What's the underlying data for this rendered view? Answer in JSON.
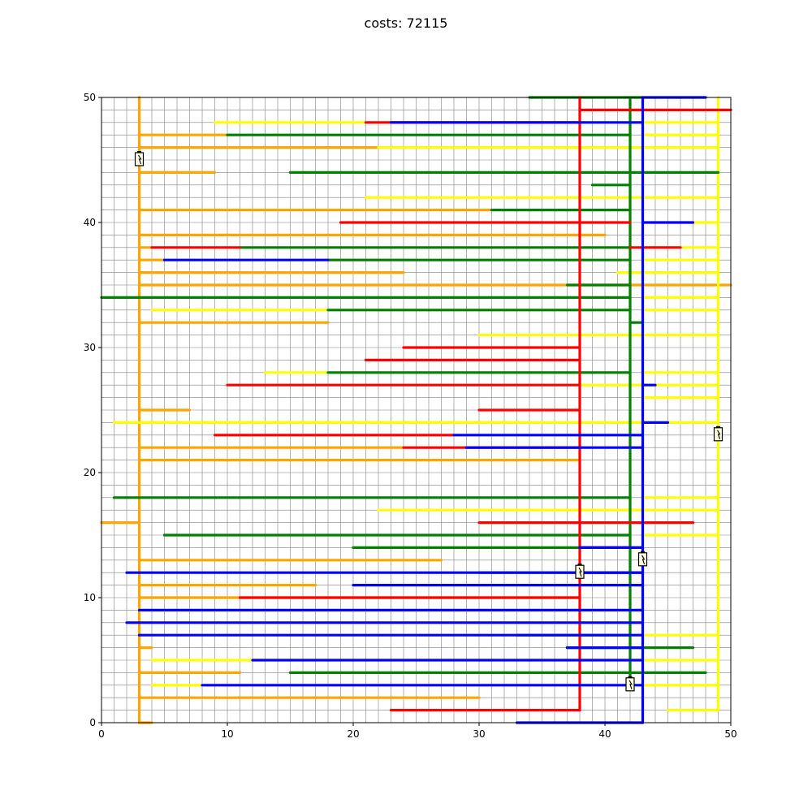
{
  "chart_data": {
    "type": "line",
    "title": "costs: 72115",
    "xlim": [
      0,
      50
    ],
    "ylim": [
      0,
      50
    ],
    "grid": true,
    "xticks": [
      "0",
      "10",
      "20",
      "30",
      "40",
      "50"
    ],
    "yticks": [
      "0",
      "10",
      "20",
      "30",
      "40",
      "50"
    ],
    "colors": {
      "orange": "#ffa500",
      "yellow": "#ffff00",
      "green": "#008000",
      "red": "#ff0000",
      "blue": "#0000ff"
    },
    "series": [
      {
        "color": "orange",
        "segments": [
          [
            3,
            0,
            3,
            50
          ],
          [
            3,
            0,
            4,
            0
          ],
          [
            3,
            2,
            30,
            2
          ],
          [
            3,
            4,
            11,
            4
          ],
          [
            3,
            6,
            4,
            6
          ],
          [
            3,
            10,
            38,
            10
          ],
          [
            3,
            11,
            17,
            11
          ],
          [
            3,
            13,
            27,
            13
          ],
          [
            3,
            16,
            0,
            16
          ],
          [
            3,
            21,
            38,
            21
          ],
          [
            3,
            22,
            24,
            22
          ],
          [
            3,
            24,
            33,
            24
          ],
          [
            3,
            25,
            7,
            25
          ],
          [
            3,
            32,
            18,
            32
          ],
          [
            3,
            35,
            50,
            35
          ],
          [
            3,
            36,
            24,
            36
          ],
          [
            3,
            37,
            5,
            37
          ],
          [
            3,
            38,
            4,
            38
          ],
          [
            3,
            39,
            40,
            39
          ],
          [
            3,
            41,
            31,
            41
          ],
          [
            3,
            44,
            9,
            44
          ],
          [
            3,
            46,
            22,
            46
          ],
          [
            3,
            47,
            10,
            47
          ]
        ]
      },
      {
        "color": "yellow",
        "segments": [
          [
            49,
            1,
            49,
            50
          ],
          [
            45,
            1,
            49,
            1
          ],
          [
            43,
            3,
            49,
            3
          ],
          [
            43,
            5,
            49,
            5
          ],
          [
            43,
            7,
            49,
            7
          ],
          [
            8,
            8,
            37,
            8
          ],
          [
            4,
            5,
            12,
            5
          ],
          [
            4,
            3,
            8,
            3
          ],
          [
            43,
            15,
            49,
            15
          ],
          [
            22,
            17,
            49,
            17
          ],
          [
            43,
            18,
            49,
            18
          ],
          [
            1,
            24,
            49,
            24
          ],
          [
            43,
            26,
            49,
            26
          ],
          [
            38,
            27,
            49,
            27
          ],
          [
            13,
            28,
            18,
            28
          ],
          [
            43,
            28,
            49,
            28
          ],
          [
            30,
            31,
            49,
            31
          ],
          [
            43,
            33,
            49,
            33
          ],
          [
            4,
            33,
            18,
            33
          ],
          [
            43,
            34,
            49,
            34
          ],
          [
            41,
            36,
            49,
            36
          ],
          [
            43,
            37,
            49,
            37
          ],
          [
            43,
            38,
            49,
            38
          ],
          [
            43,
            40,
            49,
            40
          ],
          [
            21,
            42,
            49,
            42
          ],
          [
            22,
            46,
            49,
            46
          ],
          [
            43,
            47,
            49,
            47
          ],
          [
            9,
            48,
            21,
            48
          ],
          [
            43,
            48,
            49,
            48
          ]
        ]
      },
      {
        "color": "green",
        "segments": [
          [
            42,
            3,
            42,
            50
          ],
          [
            15,
            4,
            48,
            4
          ],
          [
            37,
            6,
            47,
            6
          ],
          [
            33,
            7,
            42,
            7
          ],
          [
            30,
            12,
            42,
            12
          ],
          [
            20,
            14,
            42,
            14
          ],
          [
            5,
            15,
            42,
            15
          ],
          [
            1,
            18,
            42,
            18
          ],
          [
            18,
            28,
            42,
            28
          ],
          [
            42,
            32,
            43,
            32
          ],
          [
            18,
            33,
            42,
            33
          ],
          [
            0,
            34,
            42,
            34
          ],
          [
            37,
            35,
            42,
            35
          ],
          [
            18,
            37,
            42,
            37
          ],
          [
            11,
            38,
            42,
            38
          ],
          [
            31,
            41,
            42,
            41
          ],
          [
            39,
            43,
            42,
            43
          ],
          [
            15,
            44,
            49,
            44
          ],
          [
            10,
            47,
            42,
            47
          ],
          [
            34,
            50,
            43,
            50
          ]
        ]
      },
      {
        "color": "red",
        "segments": [
          [
            38,
            1,
            38,
            50
          ],
          [
            23,
            1,
            38,
            1
          ],
          [
            11,
            10,
            38,
            10
          ],
          [
            30,
            16,
            47,
            16
          ],
          [
            24,
            22,
            38,
            22
          ],
          [
            9,
            23,
            28,
            23
          ],
          [
            30,
            25,
            38,
            25
          ],
          [
            10,
            27,
            38,
            27
          ],
          [
            21,
            29,
            38,
            29
          ],
          [
            24,
            30,
            38,
            30
          ],
          [
            38,
            14,
            43,
            14
          ],
          [
            4,
            38,
            11,
            38
          ],
          [
            42,
            38,
            46,
            38
          ],
          [
            19,
            40,
            42,
            40
          ],
          [
            21,
            48,
            38,
            48
          ],
          [
            38,
            49,
            50,
            49
          ]
        ]
      },
      {
        "color": "blue",
        "segments": [
          [
            43,
            0,
            43,
            50
          ],
          [
            33,
            0,
            43,
            0
          ],
          [
            8,
            3,
            43,
            3
          ],
          [
            12,
            5,
            43,
            5
          ],
          [
            37,
            6,
            43,
            6
          ],
          [
            3,
            7,
            43,
            7
          ],
          [
            2,
            8,
            43,
            8
          ],
          [
            3,
            9,
            43,
            9
          ],
          [
            20,
            11,
            43,
            11
          ],
          [
            2,
            12,
            43,
            12
          ],
          [
            38,
            12,
            43,
            12
          ],
          [
            38,
            14,
            43,
            14
          ],
          [
            29,
            22,
            43,
            22
          ],
          [
            28,
            23,
            43,
            23
          ],
          [
            43,
            24,
            45,
            24
          ],
          [
            43,
            27,
            44,
            27
          ],
          [
            5,
            37,
            18,
            37
          ],
          [
            43,
            40,
            47,
            40
          ],
          [
            23,
            48,
            43,
            48
          ],
          [
            43,
            50,
            48,
            50
          ]
        ]
      }
    ],
    "markers": [
      {
        "x": 3,
        "y": 45,
        "icon": "battery-icon"
      },
      {
        "x": 49,
        "y": 23,
        "icon": "battery-icon"
      },
      {
        "x": 43,
        "y": 13,
        "icon": "battery-icon"
      },
      {
        "x": 38,
        "y": 12,
        "icon": "battery-icon"
      },
      {
        "x": 42,
        "y": 3,
        "icon": "battery-icon"
      }
    ]
  }
}
